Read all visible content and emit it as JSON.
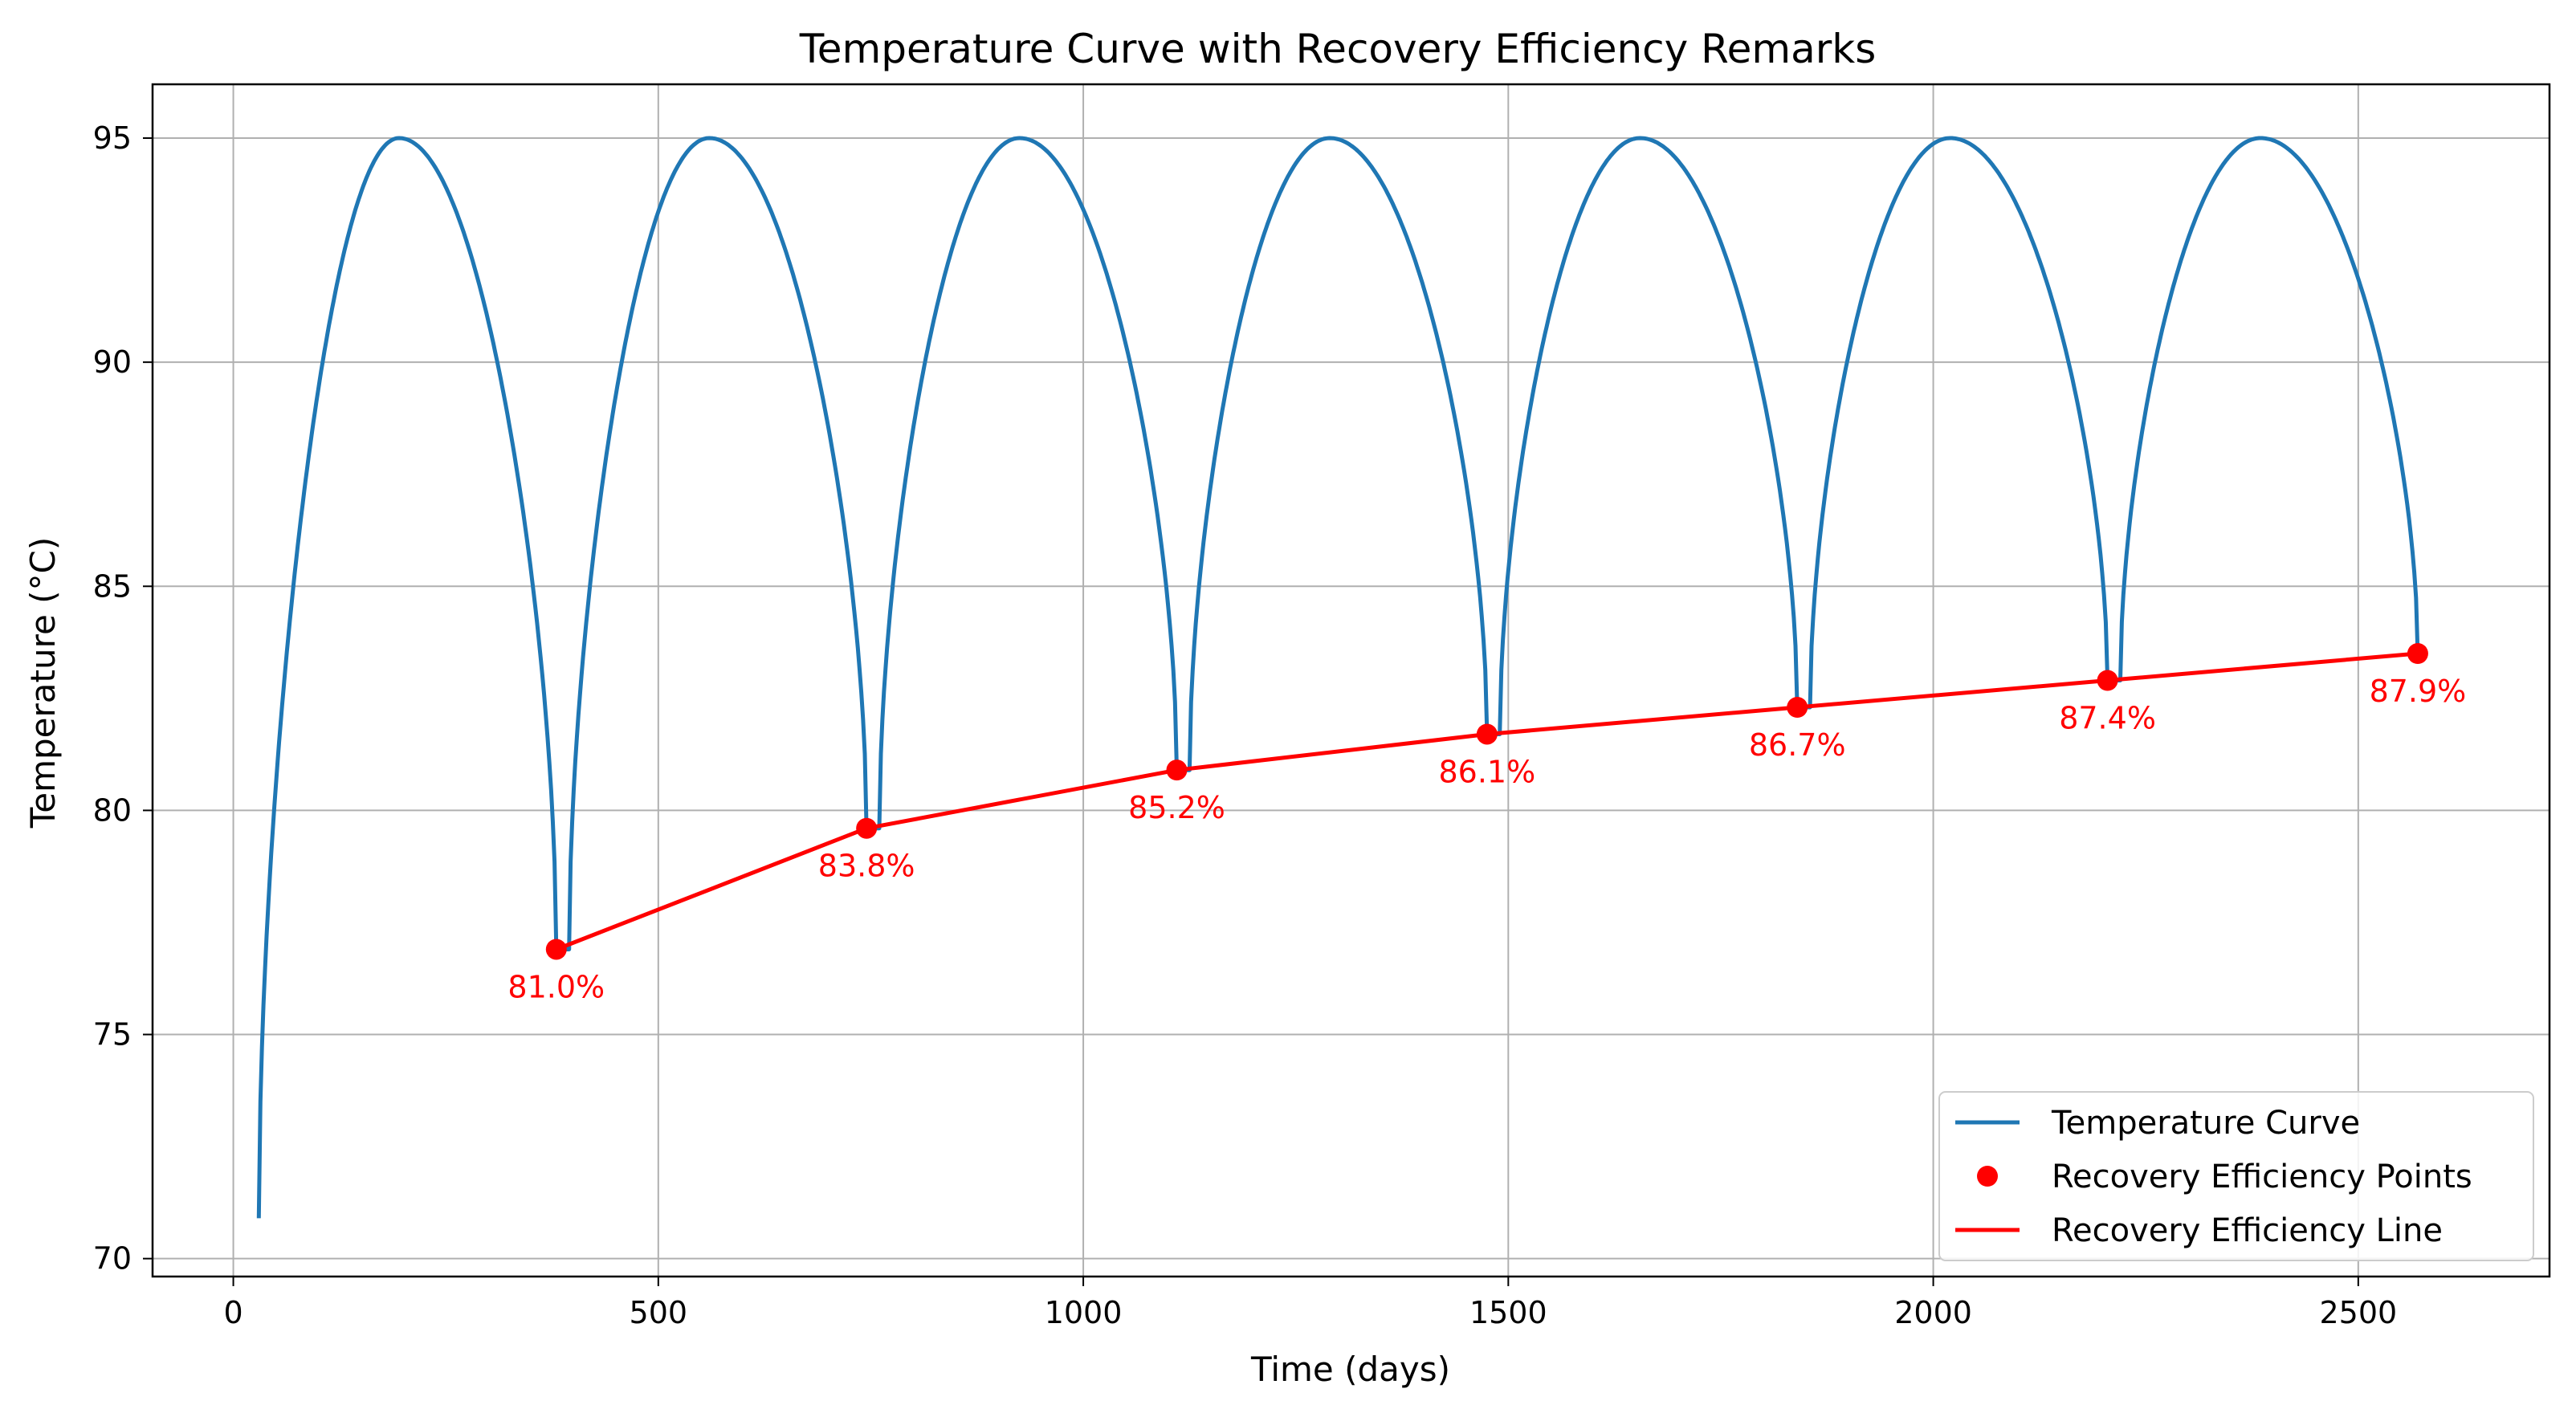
{
  "chart_data": {
    "type": "line",
    "title": "Temperature Curve with Recovery Efficiency Remarks",
    "xlabel": "Time (days)",
    "ylabel": "Temperature (°C)",
    "xlim": [
      -95,
      2725
    ],
    "ylim": [
      69.6,
      96.2
    ],
    "x_ticks": [
      0,
      500,
      1000,
      1500,
      2000,
      2500
    ],
    "y_ticks": [
      70,
      75,
      80,
      85,
      90,
      95
    ],
    "x_tick_labels": [
      "0",
      "500",
      "1000",
      "1500",
      "2000",
      "2500"
    ],
    "y_tick_labels": [
      "70",
      "75",
      "80",
      "85",
      "90",
      "95"
    ],
    "grid": true,
    "legend_position": "lower-right",
    "colors": {
      "temperature": "#1f77b4",
      "recovery": "#ff0000"
    },
    "temperature_curve": {
      "name": "Temperature Curve",
      "start": [
        30,
        70.9
      ],
      "peak_value": 95,
      "peak_times": [
        195,
        560,
        925,
        1290,
        1655,
        2020,
        2385
      ],
      "cycle_start_times": [
        30,
        395,
        760,
        1125,
        1490,
        1855,
        2220
      ],
      "troughs": [
        {
          "x": 380,
          "y": 76.9
        },
        {
          "x": 745,
          "y": 79.6
        },
        {
          "x": 1110,
          "y": 80.9
        },
        {
          "x": 1475,
          "y": 81.7
        },
        {
          "x": 1840,
          "y": 82.3
        },
        {
          "x": 2205,
          "y": 82.9
        },
        {
          "x": 2570,
          "y": 83.5
        }
      ],
      "end": [
        2580,
        83.5
      ]
    },
    "recovery_points": {
      "name": "Recovery Efficiency Points",
      "x": [
        380,
        745,
        1110,
        1475,
        1840,
        2205,
        2570
      ],
      "y": [
        76.9,
        79.6,
        80.9,
        81.7,
        82.3,
        82.9,
        83.5
      ],
      "labels": [
        "81.0%",
        "83.8%",
        "85.2%",
        "86.1%",
        "86.7%",
        "87.4%",
        "87.9%"
      ]
    },
    "recovery_line": {
      "name": "Recovery Efficiency Line"
    }
  }
}
